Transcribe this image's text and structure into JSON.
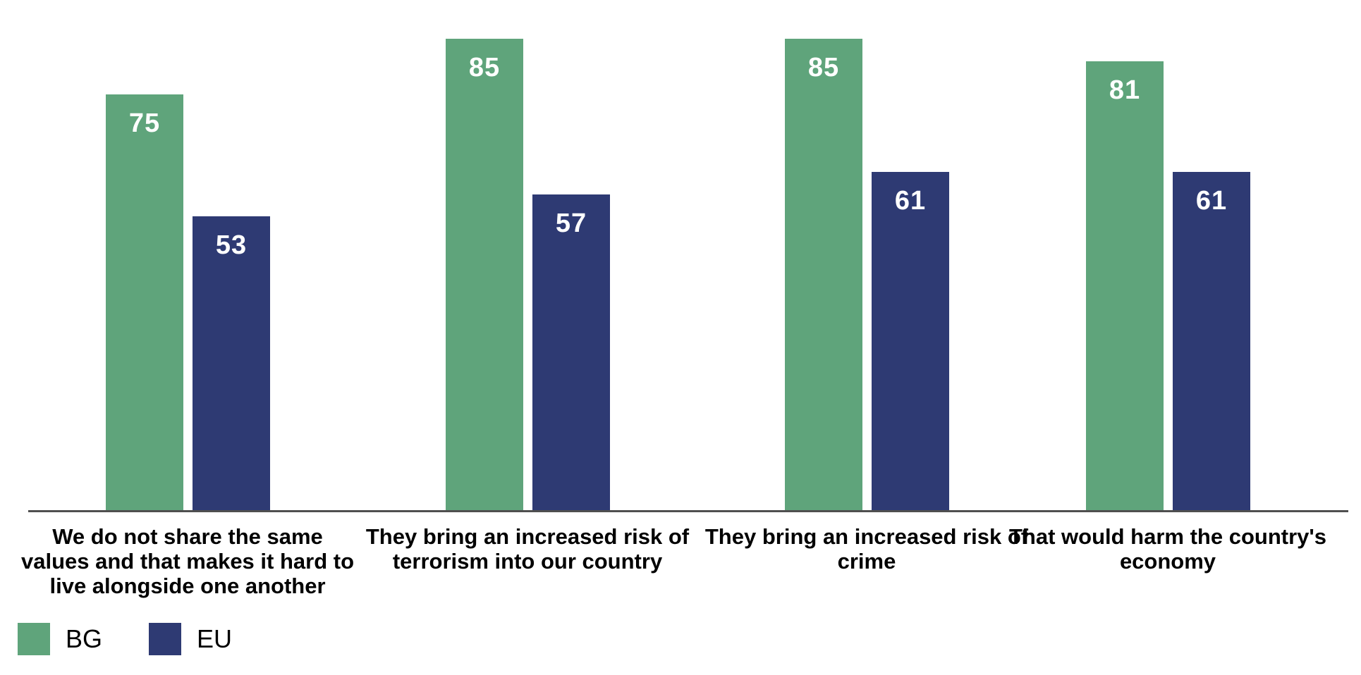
{
  "chart_data": {
    "type": "bar",
    "categories": [
      "We do not share the same values and that makes it hard to live alongside one another",
      "They bring an increased risk of terrorism into our country",
      "They bring an increased risk of crime",
      "That would harm the country's economy"
    ],
    "series": [
      {
        "name": "BG",
        "color": "#5fa47b",
        "values": [
          75,
          85,
          85,
          81
        ]
      },
      {
        "name": "EU",
        "color": "#2e3a73",
        "values": [
          53,
          57,
          61,
          61
        ]
      }
    ],
    "title": "",
    "xlabel": "",
    "ylabel": "",
    "ylim": [
      0,
      92
    ],
    "grid": false,
    "value_labels_shown": true,
    "value_label_color": "#ffffff",
    "axis_line_color": "#4f4f4f",
    "legend_position": "bottom-left"
  }
}
